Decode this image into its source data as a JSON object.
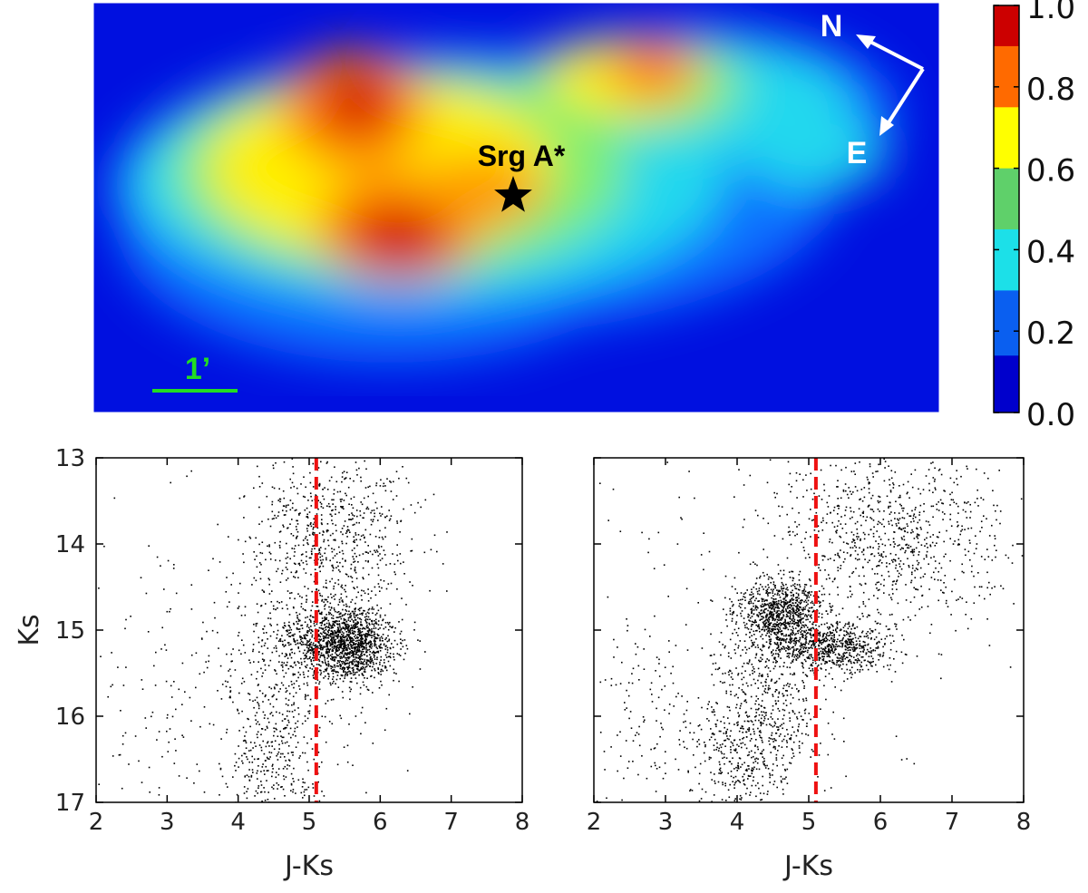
{
  "chart_data": [
    {
      "type": "heatmap",
      "colorbar": {
        "range": [
          0.0,
          1.0
        ],
        "ticks": [
          "0.0",
          "0.2",
          "0.4",
          "0.6",
          "0.8",
          "1.0"
        ],
        "levels": [
          "#0000cc",
          "#0a5ff0",
          "#1ce0e8",
          "#5fd06a",
          "#ffff00",
          "#ff6a00",
          "#cc0000"
        ]
      },
      "colormap": [
        "#0000ff",
        "#0080ff",
        "#00e0ff",
        "#7fff7f",
        "#ffff00",
        "#ff8000",
        "#cc0000"
      ],
      "peaks": [
        {
          "name": "upper-left",
          "value": 1.0
        },
        {
          "name": "lower-left",
          "value": 1.0
        },
        {
          "name": "upper-right",
          "value": 0.85
        }
      ],
      "annotations": {
        "source_label": "Srg A*",
        "north_label": "N",
        "east_label": "E",
        "scale_bar_label": "1’"
      },
      "colors": {
        "scale_bar": "#22dd22",
        "compass": "#ffffff",
        "marker": "#000000"
      }
    },
    {
      "type": "scatter",
      "xlabel": "J-Ks",
      "ylabel": "Ks",
      "xlim": [
        2,
        8
      ],
      "ylim": [
        13,
        17
      ],
      "y_inverted": true,
      "xticks": [
        "2",
        "3",
        "4",
        "5",
        "6",
        "7",
        "8"
      ],
      "yticks": [
        "13",
        "14",
        "15",
        "16",
        "17"
      ],
      "vline_x": 5.1,
      "vline_color": "#ee1111",
      "point_color": "#000000",
      "clumps": [
        {
          "x": 5.5,
          "y": 15.15,
          "sx": 0.35,
          "sy": 0.22,
          "n": 1500
        },
        {
          "x": 5.35,
          "y": 13.9,
          "sx": 0.55,
          "sy": 0.55,
          "n": 700
        },
        {
          "x": 4.6,
          "y": 15.6,
          "sx": 0.5,
          "sy": 0.8,
          "n": 500
        },
        {
          "x": 4.4,
          "y": 16.6,
          "sx": 0.3,
          "sy": 0.3,
          "n": 150
        },
        {
          "x": 3.2,
          "y": 15.8,
          "sx": 0.7,
          "sy": 0.9,
          "n": 120
        }
      ]
    },
    {
      "type": "scatter",
      "xlabel": "J-Ks",
      "xlim": [
        2,
        8
      ],
      "ylim": [
        13,
        17
      ],
      "y_inverted": true,
      "xticks": [
        "2",
        "3",
        "4",
        "5",
        "6",
        "7",
        "8"
      ],
      "vline_x": 5.1,
      "vline_color": "#ee1111",
      "point_color": "#000000",
      "clumps": [
        {
          "x": 4.6,
          "y": 14.8,
          "sx": 0.3,
          "sy": 0.2,
          "n": 900
        },
        {
          "x": 5.3,
          "y": 15.2,
          "sx": 0.4,
          "sy": 0.15,
          "n": 700
        },
        {
          "x": 6.1,
          "y": 13.9,
          "sx": 0.8,
          "sy": 0.55,
          "n": 900
        },
        {
          "x": 4.4,
          "y": 15.9,
          "sx": 0.4,
          "sy": 0.5,
          "n": 500
        },
        {
          "x": 4.0,
          "y": 16.6,
          "sx": 0.3,
          "sy": 0.3,
          "n": 200
        },
        {
          "x": 3.0,
          "y": 16.0,
          "sx": 0.7,
          "sy": 0.8,
          "n": 200
        }
      ]
    }
  ]
}
